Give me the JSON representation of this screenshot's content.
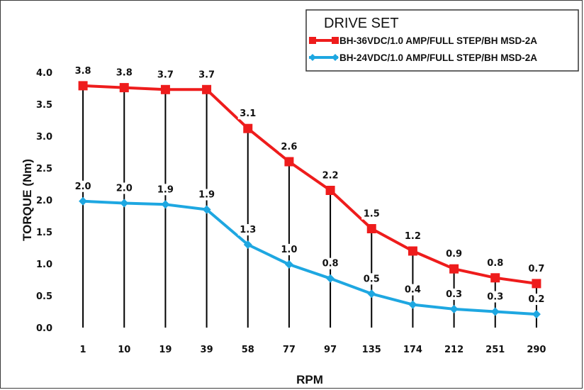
{
  "chart_data": {
    "type": "line",
    "title": "",
    "xlabel": "RPM",
    "ylabel": "TORQUE (Nm)",
    "categories": [
      "1",
      "10",
      "19",
      "39",
      "58",
      "77",
      "97",
      "135",
      "174",
      "212",
      "251",
      "290"
    ],
    "ylim": [
      0,
      4.0
    ],
    "yticks": [
      "0.0",
      "0.5",
      "1.0",
      "1.5",
      "2.0",
      "2.5",
      "3.0",
      "3.5",
      "4.0"
    ],
    "grid": false,
    "drop_lines": true,
    "legend": {
      "title": "DRIVE SET",
      "placement": "top-right"
    },
    "series": [
      {
        "name": "BH-36VDC/1.0 AMP/FULL STEP/BH MSD-2A",
        "color": "#ee1c1c",
        "marker": "square",
        "values": [
          3.79,
          3.76,
          3.73,
          3.73,
          3.12,
          2.6,
          2.15,
          1.55,
          1.2,
          0.92,
          0.78,
          0.69
        ],
        "labels": [
          "3.8",
          "3.8",
          "3.7",
          "3.7",
          "3.1",
          "2.6",
          "2.2",
          "1.5",
          "1.2",
          "0.9",
          "0.8",
          "0.7"
        ]
      },
      {
        "name": "BH-24VDC/1.0 AMP/FULL STEP/BH MSD-2A",
        "color": "#1ea7e1",
        "marker": "diamond",
        "values": [
          1.98,
          1.95,
          1.93,
          1.85,
          1.3,
          0.99,
          0.77,
          0.53,
          0.36,
          0.29,
          0.25,
          0.21
        ],
        "labels": [
          "2.0",
          "2.0",
          "1.9",
          "1.9",
          "1.3",
          "1.0",
          "0.8",
          "0.5",
          "0.4",
          "0.3",
          "0.3",
          "0.2"
        ]
      }
    ]
  }
}
